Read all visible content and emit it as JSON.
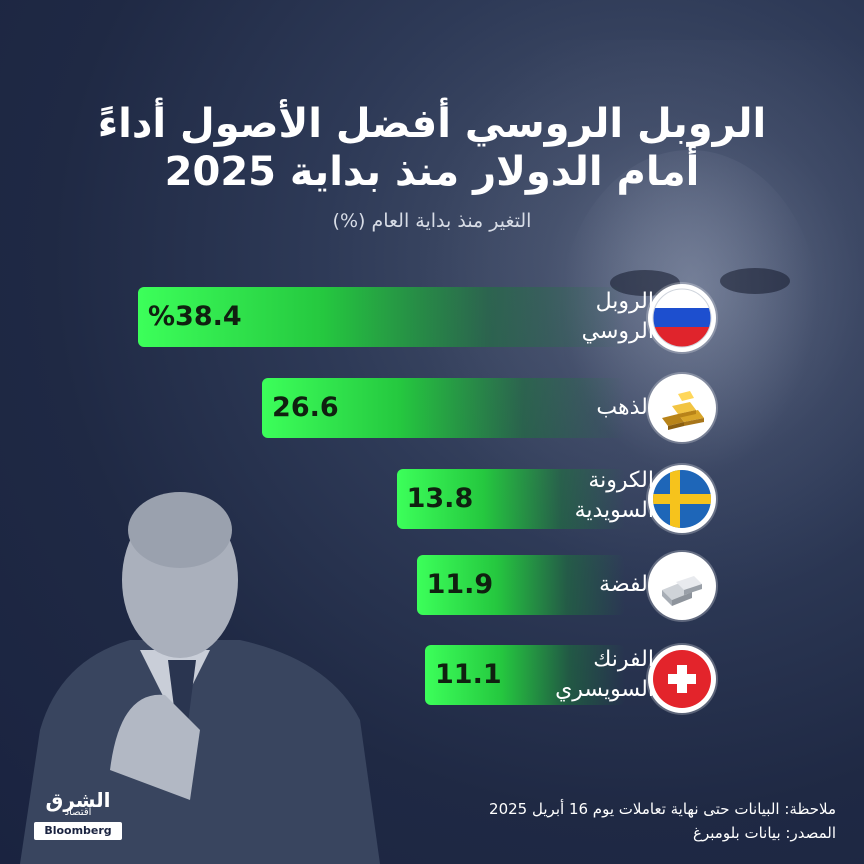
{
  "title_lines": [
    "الروبل الروسي أفضل الأصول أداءً",
    "أمام الدولار منذ بداية 2025"
  ],
  "subtitle": "التغير منذ بداية العام (%)",
  "chart_data": {
    "type": "bar",
    "orientation": "horizontal",
    "title": "الروبل الروسي أفضل الأصول أداءً أمام الدولار منذ بداية 2025",
    "subtitle": "التغير منذ بداية العام (%)",
    "categories": [
      "الروبل الروسي",
      "الذهب",
      "الكرونة السويدية",
      "الفضة",
      "الفرنك السويسري"
    ],
    "values": [
      38.4,
      26.6,
      13.8,
      11.9,
      11.1
    ],
    "value_labels": [
      "%38.4",
      "26.6",
      "13.8",
      "11.9",
      "11.1"
    ],
    "bar_color": "#2fe04c"
  },
  "bars": [
    {
      "label_lines": [
        "الروبل",
        "الروسي"
      ],
      "value_label": "%38.4",
      "icon": "russia-flag-icon"
    },
    {
      "label_lines": [
        "الذهب"
      ],
      "value_label": "26.6",
      "icon": "gold-bars-icon"
    },
    {
      "label_lines": [
        "الكرونة",
        "السويدية"
      ],
      "value_label": "13.8",
      "icon": "sweden-flag-icon"
    },
    {
      "label_lines": [
        "الفضة"
      ],
      "value_label": "11.9",
      "icon": "silver-bars-icon"
    },
    {
      "label_lines": [
        "الفرنك",
        "السويسري"
      ],
      "value_label": "11.1",
      "icon": "switzerland-flag-icon"
    }
  ],
  "logo": {
    "main": "الشرق",
    "small": "اقتصاد",
    "sub": "Bloomberg"
  },
  "footer": {
    "note": "ملاحظة: البيانات حتى نهاية تعاملات يوم 16 أبريل 2025",
    "source": "المصدر: بيانات بلومبرغ"
  },
  "colors": {
    "background": "#1f2944",
    "bar": "#2fe04c",
    "text": "#ffffff"
  }
}
